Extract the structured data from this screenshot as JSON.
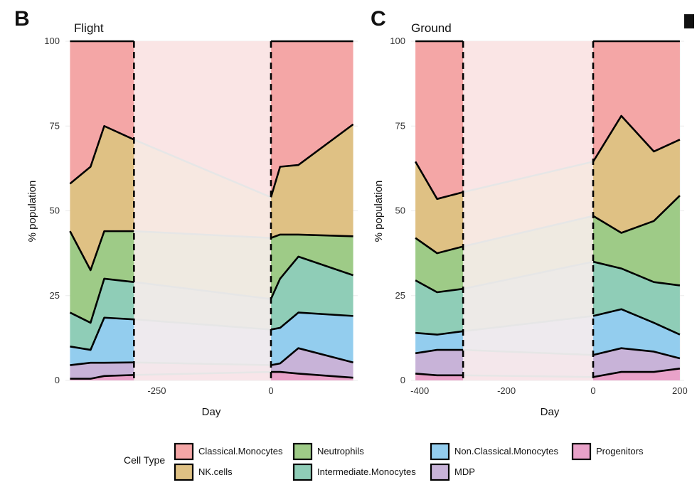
{
  "chart_data": [
    {
      "panel_letter": "B",
      "type": "area",
      "title": "Flight",
      "xlabel": "Day",
      "ylabel": "% population",
      "xlim": [
        -450,
        190
      ],
      "ylim": [
        0,
        100
      ],
      "xticks": [
        -250,
        0
      ],
      "yticks": [
        0,
        25,
        50,
        75,
        100
      ],
      "windows": [
        [
          -450,
          -300
        ],
        [
          0,
          190
        ]
      ],
      "gap_color": "#fbeeee",
      "series": [
        {
          "name": "Progenitors",
          "x": [
            -440,
            -395,
            -365,
            -300,
            0,
            20,
            60,
            180
          ],
          "values": [
            0.5,
            0.5,
            1.3,
            1.6,
            2.5,
            2.5,
            2.0,
            0.8
          ]
        },
        {
          "name": "MDP",
          "x": [
            -440,
            -395,
            -365,
            -300,
            0,
            20,
            60,
            180
          ],
          "values": [
            4.5,
            5.2,
            5.2,
            5.3,
            4.5,
            5.0,
            9.5,
            5.3
          ]
        },
        {
          "name": "Non.Classical.Monocytes",
          "x": [
            -440,
            -395,
            -365,
            -300,
            0,
            20,
            60,
            180
          ],
          "values": [
            10.0,
            9.0,
            18.5,
            18.0,
            15.0,
            15.5,
            20.0,
            19.0
          ]
        },
        {
          "name": "Intermediate.Monocytes",
          "x": [
            -440,
            -395,
            -365,
            -300,
            0,
            20,
            60,
            180
          ],
          "values": [
            20.0,
            17.0,
            30.0,
            29.0,
            24.0,
            30.0,
            36.5,
            31.0
          ]
        },
        {
          "name": "Neutrophils",
          "x": [
            -440,
            -395,
            -365,
            -300,
            0,
            20,
            60,
            180
          ],
          "values": [
            44.0,
            32.5,
            44.0,
            44.0,
            42.0,
            43.0,
            43.0,
            42.5
          ]
        },
        {
          "name": "NK.cells",
          "x": [
            -440,
            -395,
            -365,
            -300,
            0,
            20,
            60,
            180
          ],
          "values": [
            58.0,
            63.0,
            75.0,
            71.0,
            54.0,
            63.0,
            63.5,
            75.5
          ]
        },
        {
          "name": "Classical.Monocytes",
          "x": [
            -440,
            -395,
            -365,
            -300,
            0,
            20,
            60,
            180
          ],
          "values": [
            100,
            100,
            100,
            100,
            100,
            100,
            100,
            100
          ]
        }
      ]
    },
    {
      "panel_letter": "C",
      "type": "area",
      "title": "Ground",
      "xlabel": "Day",
      "ylabel": "% population",
      "xlim": [
        -420,
        210
      ],
      "ylim": [
        0,
        100
      ],
      "xticks": [
        -400,
        -200,
        0,
        200
      ],
      "yticks": [
        0,
        25,
        50,
        75,
        100
      ],
      "windows": [
        [
          -410,
          -300
        ],
        [
          0,
          200
        ]
      ],
      "gap_color": "#fbeeee",
      "series": [
        {
          "name": "Progenitors",
          "x": [
            -410,
            -360,
            -300,
            0,
            65,
            140,
            200
          ],
          "values": [
            2.0,
            1.5,
            1.5,
            1.0,
            2.5,
            2.5,
            3.5
          ]
        },
        {
          "name": "MDP",
          "x": [
            -410,
            -360,
            -300,
            0,
            65,
            140,
            200
          ],
          "values": [
            8.0,
            9.0,
            9.0,
            7.5,
            9.5,
            8.5,
            6.5
          ]
        },
        {
          "name": "Non.Classical.Monocytes",
          "x": [
            -410,
            -360,
            -300,
            0,
            65,
            140,
            200
          ],
          "values": [
            14.0,
            13.5,
            14.5,
            19.0,
            21.0,
            17.0,
            13.5
          ]
        },
        {
          "name": "Intermediate.Monocytes",
          "x": [
            -410,
            -360,
            -300,
            0,
            65,
            140,
            200
          ],
          "values": [
            29.5,
            26.0,
            27.0,
            35.0,
            33.0,
            29.0,
            28.0
          ]
        },
        {
          "name": "Neutrophils",
          "x": [
            -410,
            -360,
            -300,
            0,
            65,
            140,
            200
          ],
          "values": [
            42.0,
            37.5,
            39.5,
            48.5,
            43.5,
            47.0,
            54.5
          ]
        },
        {
          "name": "NK.cells",
          "x": [
            -410,
            -360,
            -300,
            0,
            65,
            140,
            200
          ],
          "values": [
            64.5,
            53.5,
            55.5,
            64.5,
            78.0,
            67.5,
            71.0
          ]
        },
        {
          "name": "Classical.Monocytes",
          "x": [
            -410,
            -360,
            -300,
            0,
            65,
            140,
            200
          ],
          "values": [
            100,
            100,
            100,
            100,
            100,
            100,
            100
          ]
        }
      ]
    }
  ],
  "colors": {
    "Classical.Monocytes": "#f4a6a6",
    "NK.cells": "#dfc184",
    "Neutrophils": "#9ecb87",
    "Intermediate.Monocytes": "#8fcdb7",
    "Non.Classical.Monocytes": "#93cdee",
    "MDP": "#c8b3d8",
    "Progenitors": "#e9a2c9"
  },
  "legend": {
    "title": "Cell Type",
    "items": [
      "Classical.Monocytes",
      "NK.cells",
      "Neutrophils",
      "Intermediate.Monocytes",
      "Non.Classical.Monocytes",
      "MDP",
      "Progenitors"
    ]
  }
}
